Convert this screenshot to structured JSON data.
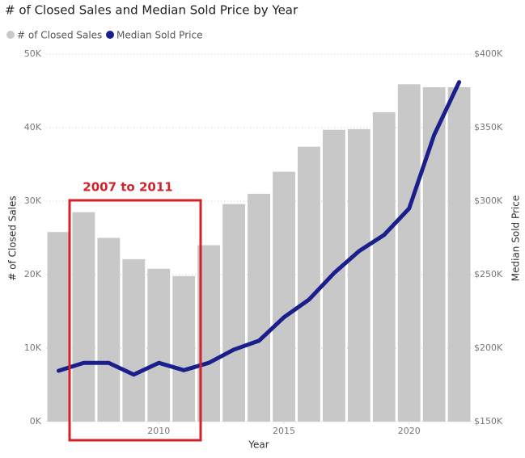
{
  "chart_data": {
    "type": "bar-line",
    "title": "# of Closed Sales and Median Sold Price by Year",
    "x_label": "Year",
    "y_label": "# of Closed Sales",
    "y2_label": "Median Sold Price",
    "annotation": "2007 to 2011",
    "x": [
      2006,
      2007,
      2008,
      2009,
      2010,
      2011,
      2012,
      2013,
      2014,
      2015,
      2016,
      2017,
      2018,
      2019,
      2020,
      2021,
      2022
    ],
    "xlim": [
      2005.5,
      2022.4
    ],
    "xticks": [
      2010,
      2015,
      2020
    ],
    "ylim": [
      0,
      50000
    ],
    "yticks": [
      {
        "value": 0,
        "label": "0K"
      },
      {
        "value": 10000,
        "label": "10K"
      },
      {
        "value": 20000,
        "label": "20K"
      },
      {
        "value": 30000,
        "label": "30K"
      },
      {
        "value": 40000,
        "label": "40K"
      },
      {
        "value": 50000,
        "label": "50K"
      }
    ],
    "y2lim": [
      150000,
      400000
    ],
    "y2ticks": [
      {
        "value": 150000,
        "label": "$150K"
      },
      {
        "value": 200000,
        "label": "$200K"
      },
      {
        "value": 250000,
        "label": "$250K"
      },
      {
        "value": 300000,
        "label": "$300K"
      },
      {
        "value": 350000,
        "label": "$350K"
      },
      {
        "value": 400000,
        "label": "$400K"
      }
    ],
    "grid": true,
    "series": [
      {
        "name": "# of Closed Sales",
        "type": "bar",
        "color": "#c8c8c8",
        "values": [
          25800,
          28500,
          25000,
          22100,
          20800,
          19800,
          24000,
          29600,
          31000,
          34000,
          37400,
          39700,
          39800,
          42100,
          45900,
          45500,
          45500
        ]
      },
      {
        "name": "Median Sold Price",
        "type": "line",
        "axis": "y2",
        "color": "#1a1f8c",
        "values": [
          184600,
          190000,
          190000,
          182000,
          190000,
          185000,
          190000,
          199000,
          205000,
          221000,
          233000,
          251000,
          266000,
          277000,
          295000,
          345000,
          381000
        ]
      }
    ]
  }
}
